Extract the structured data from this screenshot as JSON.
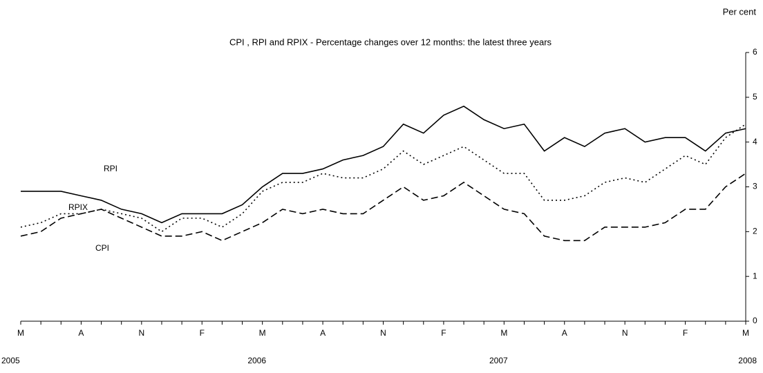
{
  "chart_data": {
    "type": "line",
    "title": "CPI , RPI and RPIX - Percentage changes over 12 months: the latest three years",
    "y_label": "Per cent",
    "categories": [
      "M",
      null,
      null,
      "A",
      null,
      null,
      "N",
      null,
      null,
      "F",
      null,
      null,
      "M",
      null,
      null,
      "A",
      null,
      null,
      "N",
      null,
      null,
      "F",
      null,
      null,
      "M",
      null,
      null,
      "A",
      null,
      null,
      "N",
      null,
      null,
      "F",
      null,
      null,
      "M"
    ],
    "year_labels": [
      "2005",
      null,
      null,
      null,
      null,
      null,
      null,
      null,
      null,
      null,
      null,
      null,
      "2006",
      null,
      null,
      null,
      null,
      null,
      null,
      null,
      null,
      null,
      null,
      null,
      "2007",
      null,
      null,
      null,
      null,
      null,
      null,
      null,
      null,
      null,
      null,
      null,
      "2008"
    ],
    "series": [
      {
        "name": "RPI",
        "color": "#000000",
        "dash": "solid",
        "values": [
          2.9,
          2.9,
          2.9,
          2.8,
          2.7,
          2.5,
          2.4,
          2.2,
          2.4,
          2.4,
          2.4,
          2.6,
          3.0,
          3.3,
          3.3,
          3.4,
          3.6,
          3.7,
          3.9,
          4.4,
          4.2,
          4.6,
          4.8,
          4.5,
          4.3,
          4.4,
          3.8,
          4.1,
          3.9,
          4.2,
          4.3,
          4.0,
          4.1,
          4.1,
          3.8,
          4.2,
          4.3
        ]
      },
      {
        "name": "RPIX",
        "color": "#000000",
        "dash": "dotted",
        "values": [
          2.1,
          2.2,
          2.4,
          2.4,
          2.5,
          2.4,
          2.3,
          2.0,
          2.3,
          2.3,
          2.1,
          2.4,
          2.9,
          3.1,
          3.1,
          3.3,
          3.2,
          3.2,
          3.4,
          3.8,
          3.5,
          3.7,
          3.9,
          3.6,
          3.3,
          3.3,
          2.7,
          2.7,
          2.8,
          3.1,
          3.2,
          3.1,
          3.4,
          3.7,
          3.5,
          4.1,
          4.4
        ]
      },
      {
        "name": "CPI",
        "color": "#000000",
        "dash": "dashed",
        "values": [
          1.9,
          2.0,
          2.3,
          2.4,
          2.5,
          2.3,
          2.1,
          1.9,
          1.9,
          2.0,
          1.8,
          2.0,
          2.2,
          2.5,
          2.4,
          2.5,
          2.4,
          2.4,
          2.7,
          3.0,
          2.7,
          2.8,
          3.1,
          2.8,
          2.5,
          2.4,
          1.9,
          1.8,
          1.8,
          2.1,
          2.1,
          2.1,
          2.2,
          2.5,
          2.5,
          3.0,
          3.3
        ]
      }
    ],
    "ylim": [
      0,
      6
    ],
    "yticks": [
      0,
      1,
      2,
      3,
      4,
      5,
      6
    ],
    "y_axis_side": "right",
    "grid": false
  }
}
